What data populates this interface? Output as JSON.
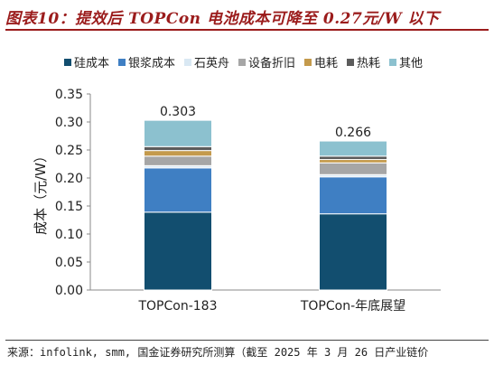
{
  "figure_title": "图表10：提效后 TOPCon 电池成本可降至 0.27元/W 以下",
  "source_note": "来源：infolink, smm, 国金证券研究所测算（截至 2025 年 3 月 26 日产业链价",
  "chart_data": {
    "type": "bar",
    "stacked": true,
    "categories": [
      "TOPCon-183",
      "TOPCon-年底展望"
    ],
    "series": [
      {
        "name": "硅成本",
        "color": "#124e6f",
        "values": [
          0.139,
          0.136
        ]
      },
      {
        "name": "银浆成本",
        "color": "#3f7fc3",
        "values": [
          0.079,
          0.066
        ]
      },
      {
        "name": "石英舟",
        "color": "#d9e8f3",
        "values": [
          0.004,
          0.004
        ]
      },
      {
        "name": "设备折旧",
        "color": "#a6a6a6",
        "values": [
          0.017,
          0.021
        ]
      },
      {
        "name": "电耗",
        "color": "#c49a4c",
        "values": [
          0.01,
          0.006
        ]
      },
      {
        "name": "热耗",
        "color": "#5c5c5c",
        "values": [
          0.007,
          0.006
        ]
      },
      {
        "name": "其他",
        "color": "#8cc1cf",
        "values": [
          0.047,
          0.027
        ]
      }
    ],
    "totals": [
      "0.303",
      "0.266"
    ],
    "ylabel": "成本（元/W）",
    "ylim": [
      0,
      0.35
    ],
    "yticks": [
      "0.00",
      "0.05",
      "0.10",
      "0.15",
      "0.20",
      "0.25",
      "0.30",
      "0.35"
    ],
    "legend_position": "top",
    "grid": false
  }
}
